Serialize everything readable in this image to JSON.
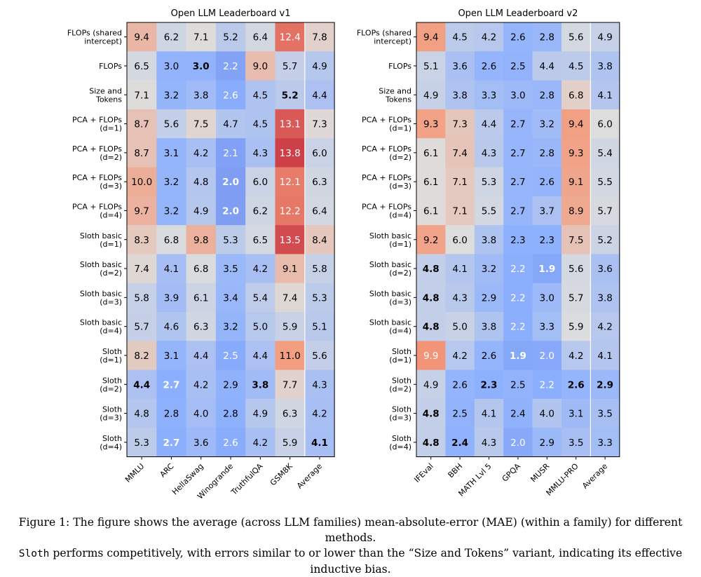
{
  "chart_data": [
    {
      "type": "heatmap",
      "title": "Open LLM Leaderboard v1",
      "row_labels": [
        "FLOPs (shared\nintercept)",
        "FLOPs",
        "Size and\nTokens",
        "PCA + FLOPs\n(d=1)",
        "PCA + FLOPs\n(d=2)",
        "PCA + FLOPs\n(d=3)",
        "PCA + FLOPs\n(d=4)",
        "Sloth basic\n(d=1)",
        "Sloth basic\n(d=2)",
        "Sloth basic\n(d=3)",
        "Sloth basic\n(d=4)",
        "Sloth\n(d=1)",
        "Sloth\n(d=2)",
        "Sloth\n(d=3)",
        "Sloth\n(d=4)"
      ],
      "col_labels": [
        "MMLU",
        "ARC",
        "HellaSwag",
        "Winogrande",
        "TruthfulQA",
        "GSM8K",
        "Average"
      ],
      "values": [
        [
          9.4,
          6.2,
          7.1,
          5.2,
          6.4,
          12.4,
          7.8
        ],
        [
          6.5,
          3.0,
          3.0,
          2.2,
          9.0,
          5.7,
          4.9
        ],
        [
          7.1,
          3.2,
          3.8,
          2.6,
          4.5,
          5.2,
          4.4
        ],
        [
          8.7,
          5.6,
          7.5,
          4.7,
          4.5,
          13.1,
          7.3
        ],
        [
          8.7,
          3.1,
          4.2,
          2.1,
          4.3,
          13.8,
          6.0
        ],
        [
          10.0,
          3.2,
          4.8,
          2.0,
          6.0,
          12.1,
          6.3
        ],
        [
          9.7,
          3.2,
          4.9,
          2.0,
          6.2,
          12.2,
          6.4
        ],
        [
          8.3,
          6.8,
          9.8,
          5.3,
          6.5,
          13.5,
          8.4
        ],
        [
          7.4,
          4.1,
          6.8,
          3.5,
          4.2,
          9.1,
          5.8
        ],
        [
          5.8,
          3.9,
          6.1,
          3.4,
          5.4,
          7.4,
          5.3
        ],
        [
          5.7,
          4.6,
          6.3,
          3.2,
          5.0,
          5.9,
          5.1
        ],
        [
          8.2,
          3.1,
          4.4,
          2.5,
          4.4,
          11.0,
          5.6
        ],
        [
          4.4,
          2.7,
          4.2,
          2.9,
          3.8,
          7.7,
          4.3
        ],
        [
          4.8,
          2.8,
          4.0,
          2.8,
          4.9,
          6.3,
          4.2
        ],
        [
          5.3,
          2.7,
          3.6,
          2.6,
          4.2,
          5.9,
          4.1
        ]
      ],
      "bold": [
        [
          1,
          2
        ],
        [
          2,
          5
        ],
        [
          5,
          3
        ],
        [
          6,
          3
        ],
        [
          12,
          0
        ],
        [
          12,
          1
        ],
        [
          12,
          4
        ],
        [
          14,
          1
        ],
        [
          14,
          6
        ]
      ],
      "color_scale": "coolwarm"
    },
    {
      "type": "heatmap",
      "title": "Open LLM Leaderboard v2",
      "row_labels": [
        "FLOPs (shared\nintercept)",
        "FLOPs",
        "Size and\nTokens",
        "PCA + FLOPs\n(d=1)",
        "PCA + FLOPs\n(d=2)",
        "PCA + FLOPs\n(d=3)",
        "PCA + FLOPs\n(d=4)",
        "Sloth basic\n(d=1)",
        "Sloth basic\n(d=2)",
        "Sloth basic\n(d=3)",
        "Sloth basic\n(d=4)",
        "Sloth\n(d=1)",
        "Sloth\n(d=2)",
        "Sloth\n(d=3)",
        "Sloth\n(d=4)"
      ],
      "col_labels": [
        "IFEval",
        "BBH",
        "MATH Lvl 5",
        "GPQA",
        "MUSR",
        "MMLU-PRO",
        "Average"
      ],
      "values": [
        [
          9.4,
          4.5,
          4.2,
          2.6,
          2.8,
          5.6,
          4.9
        ],
        [
          5.1,
          3.6,
          2.6,
          2.5,
          4.4,
          4.5,
          3.8
        ],
        [
          4.9,
          3.8,
          3.3,
          3.0,
          2.8,
          6.8,
          4.1
        ],
        [
          9.3,
          7.3,
          4.4,
          2.7,
          3.2,
          9.4,
          6.0
        ],
        [
          6.1,
          7.4,
          4.3,
          2.7,
          2.8,
          9.3,
          5.4
        ],
        [
          6.1,
          7.1,
          5.3,
          2.7,
          2.6,
          9.1,
          5.5
        ],
        [
          6.1,
          7.1,
          5.5,
          2.7,
          3.7,
          8.9,
          5.7
        ],
        [
          9.2,
          6.0,
          3.8,
          2.3,
          2.3,
          7.5,
          5.2
        ],
        [
          4.8,
          4.1,
          3.2,
          2.2,
          1.9,
          5.6,
          3.6
        ],
        [
          4.8,
          4.3,
          2.9,
          2.2,
          3.0,
          5.7,
          3.8
        ],
        [
          4.8,
          5.0,
          3.8,
          2.2,
          3.3,
          5.9,
          4.2
        ],
        [
          9.9,
          4.2,
          2.6,
          1.9,
          2.0,
          4.2,
          4.1
        ],
        [
          4.9,
          2.6,
          2.3,
          2.5,
          2.2,
          2.6,
          2.9
        ],
        [
          4.8,
          2.5,
          4.1,
          2.4,
          4.0,
          3.1,
          3.5
        ],
        [
          4.8,
          2.4,
          4.3,
          2.0,
          2.9,
          3.5,
          3.3
        ]
      ],
      "bold": [
        [
          8,
          0
        ],
        [
          8,
          4
        ],
        [
          9,
          0
        ],
        [
          10,
          0
        ],
        [
          11,
          3
        ],
        [
          12,
          2
        ],
        [
          12,
          5
        ],
        [
          12,
          6
        ],
        [
          13,
          0
        ],
        [
          14,
          0
        ],
        [
          14,
          1
        ]
      ],
      "color_scale": "coolwarm"
    }
  ],
  "caption": {
    "label": "Figure 1:",
    "text1": " The figure shows the average (across LLM families) mean-absolute-error (MAE) (within a family) for different methods.",
    "mono": "Sloth",
    "text2": " performs competitively, with errors similar to or lower than the “Size and Tokens” variant, indicating its effective inductive bias."
  }
}
